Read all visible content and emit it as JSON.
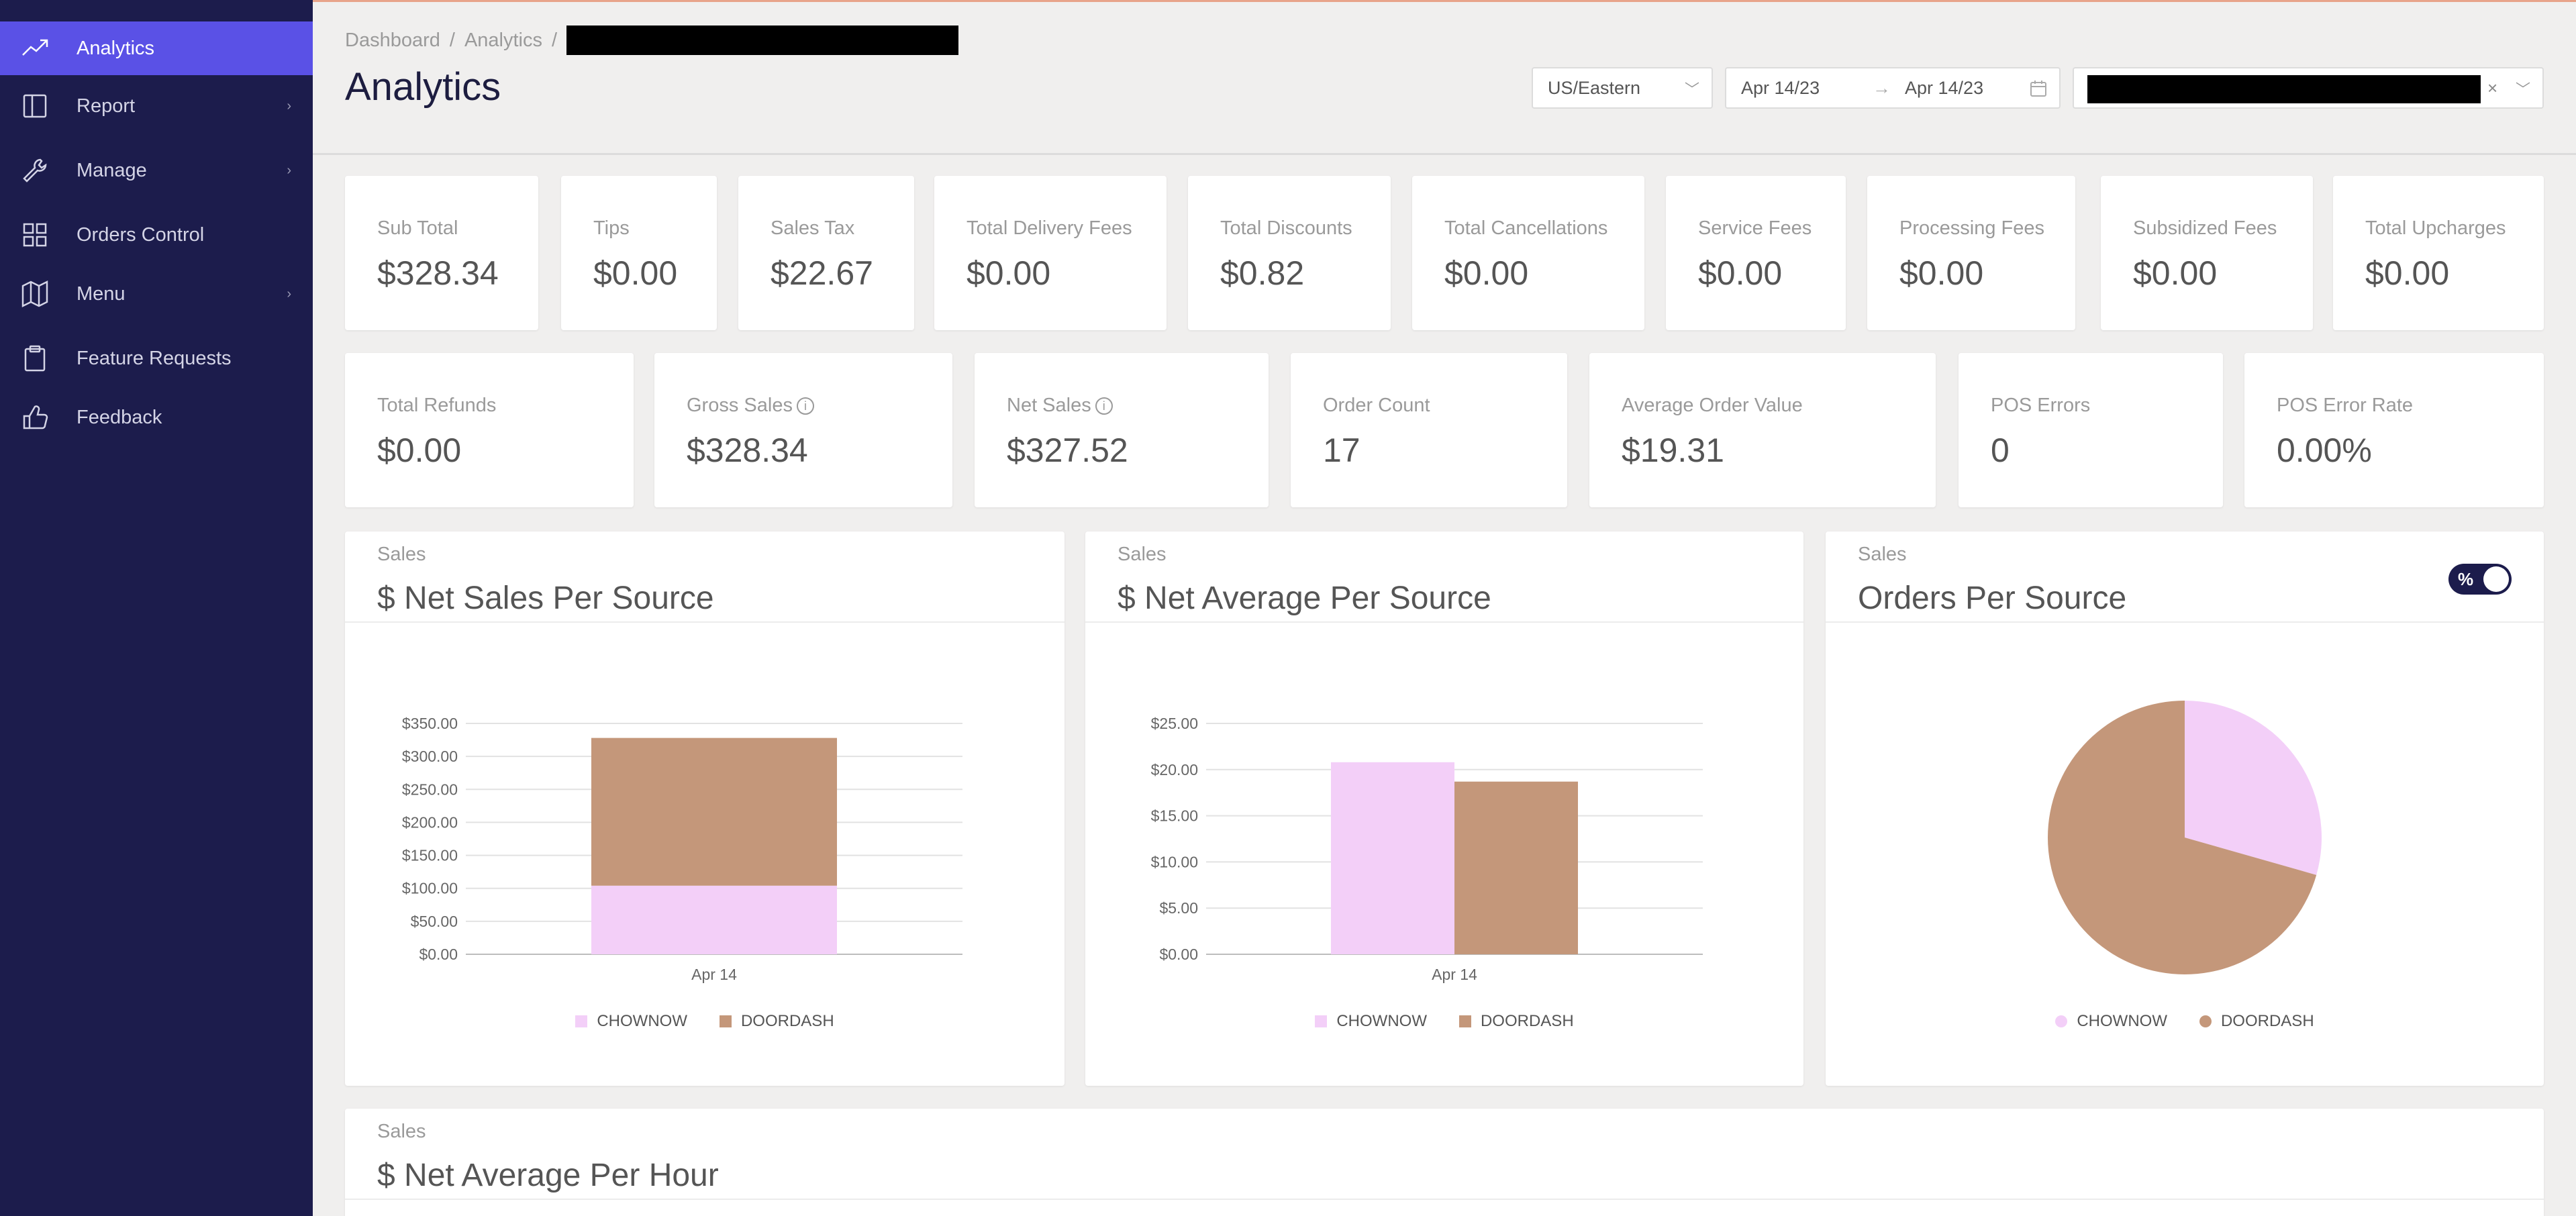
{
  "sidebar": {
    "items": [
      {
        "label": "Analytics",
        "icon": "trending-up-icon",
        "active": true,
        "has_children": false
      },
      {
        "label": "Report",
        "icon": "book-icon",
        "active": false,
        "has_children": true
      },
      {
        "label": "Manage",
        "icon": "wrench-icon",
        "active": false,
        "has_children": true
      },
      {
        "label": "Orders Control",
        "icon": "grid-icon",
        "active": false,
        "has_children": false
      },
      {
        "label": "Menu",
        "icon": "map-icon",
        "active": false,
        "has_children": true
      },
      {
        "label": "Feature Requests",
        "icon": "clipboard-icon",
        "active": false,
        "has_children": false
      },
      {
        "label": "Feedback",
        "icon": "thumbs-up-icon",
        "active": false,
        "has_children": false
      }
    ],
    "chevron": "›"
  },
  "header": {
    "breadcrumb": [
      "Dashboard",
      "Analytics"
    ],
    "breadcrumb_sep": "/",
    "title": "Analytics",
    "timezone": "US/Eastern",
    "date_from": "Apr 14/23",
    "date_to": "Apr 14/23",
    "date_arrow": "→",
    "clear_symbol": "×",
    "dropdown_symbol": "﹀"
  },
  "stats_row1": [
    {
      "label": "Sub Total",
      "value": "$328.34"
    },
    {
      "label": "Tips",
      "value": "$0.00"
    },
    {
      "label": "Sales Tax",
      "value": "$22.67"
    },
    {
      "label": "Total Delivery Fees",
      "value": "$0.00"
    },
    {
      "label": "Total Discounts",
      "value": "$0.82"
    },
    {
      "label": "Total Cancellations",
      "value": "$0.00"
    },
    {
      "label": "Service Fees",
      "value": "$0.00"
    },
    {
      "label": "Processing Fees",
      "value": "$0.00"
    },
    {
      "label": "Subsidized Fees",
      "value": "$0.00"
    },
    {
      "label": "Total Upcharges",
      "value": "$0.00"
    }
  ],
  "stats_row2": [
    {
      "label": "Total Refunds",
      "value": "$0.00",
      "info": false
    },
    {
      "label": "Gross Sales",
      "value": "$328.34",
      "info": true
    },
    {
      "label": "Net Sales",
      "value": "$327.52",
      "info": true
    },
    {
      "label": "Order Count",
      "value": "17",
      "info": false
    },
    {
      "label": "Average Order Value",
      "value": "$19.31",
      "info": false
    },
    {
      "label": "POS Errors",
      "value": "0",
      "info": false
    },
    {
      "label": "POS Error Rate",
      "value": "0.00%",
      "info": false
    }
  ],
  "info_symbol": "i",
  "colors": {
    "chownow": "#f3cff8",
    "doordash": "#c4977a",
    "accent": "#5a51e6",
    "sidebar": "#1c1c4c"
  },
  "panels": {
    "net_sales": {
      "subtitle": "Sales",
      "title": "$ Net Sales Per Source"
    },
    "net_average": {
      "subtitle": "Sales",
      "title": "$ Net Average Per Source"
    },
    "orders": {
      "subtitle": "Sales",
      "title": "Orders Per Source",
      "toggle_label": "%"
    },
    "per_hour": {
      "subtitle": "Sales",
      "title": "$ Net Average Per Hour"
    }
  },
  "chart_data": [
    {
      "type": "bar",
      "stacked": true,
      "title": "$ Net Sales Per Source",
      "categories": [
        "Apr 14"
      ],
      "series": [
        {
          "name": "CHOWNOW",
          "values": [
            104
          ],
          "color": "#f3cff8"
        },
        {
          "name": "DOORDASH",
          "values": [
            224
          ],
          "color": "#c4977a"
        }
      ],
      "yticks": [
        "$0.00",
        "$50.00",
        "$100.00",
        "$150.00",
        "$200.00",
        "$250.00",
        "$300.00",
        "$350.00"
      ],
      "ylim": [
        0,
        350
      ],
      "legend": "bottom"
    },
    {
      "type": "bar",
      "stacked": false,
      "title": "$ Net Average Per Source",
      "categories": [
        "Apr 14"
      ],
      "series": [
        {
          "name": "CHOWNOW",
          "values": [
            20.8
          ],
          "color": "#f3cff8"
        },
        {
          "name": "DOORDASH",
          "values": [
            18.7
          ],
          "color": "#c4977a"
        }
      ],
      "yticks": [
        "$0.00",
        "$5.00",
        "$10.00",
        "$15.00",
        "$20.00",
        "$25.00"
      ],
      "ylim": [
        0,
        25
      ],
      "legend": "bottom"
    },
    {
      "type": "pie",
      "title": "Orders Per Source",
      "series": [
        {
          "name": "CHOWNOW",
          "value": 5,
          "color": "#f3cff8"
        },
        {
          "name": "DOORDASH",
          "value": 12,
          "color": "#c4977a"
        }
      ],
      "legend": "bottom"
    }
  ]
}
